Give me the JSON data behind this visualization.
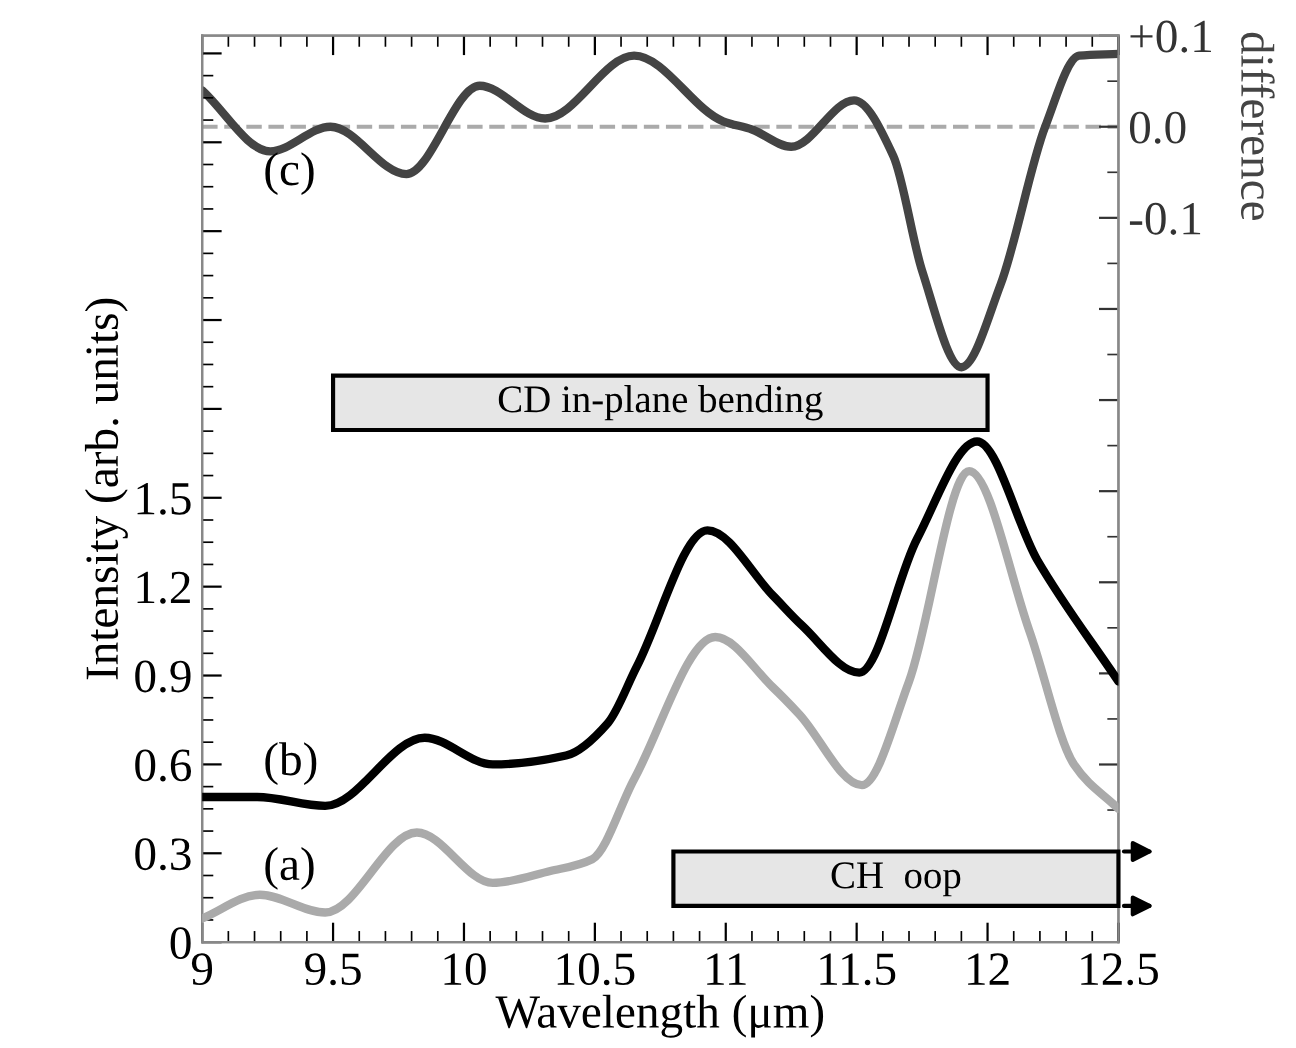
{
  "chart_data": {
    "type": "line",
    "xlabel": "Wavelength (μm)",
    "ylabel": "Intensity (arb. units)",
    "y2label": "difference",
    "xlim": [
      9,
      12.5
    ],
    "xticks": [
      9,
      9.5,
      10,
      10.5,
      11,
      11.5,
      12,
      12.5
    ],
    "ylim": [
      0,
      3.06
    ],
    "yticks": [
      0,
      0.3,
      0.6,
      0.9,
      1.2,
      1.5,
      {
        "value": 1.8,
        "label": null
      },
      {
        "value": 2.1,
        "label": null
      },
      {
        "value": 2.4,
        "label": null
      },
      {
        "value": 2.7,
        "label": null
      },
      {
        "value": 3.0,
        "label": null
      }
    ],
    "y2lim": [
      -0.895,
      0.1
    ],
    "y2ticks": [
      {
        "value": 0.1,
        "label": "+0.1"
      },
      {
        "value": 0.0,
        "label": "0.0"
      },
      {
        "value": -0.1,
        "label": "-0.1"
      },
      {
        "value": -0.2,
        "label": null
      },
      {
        "value": -0.3,
        "label": null
      },
      {
        "value": -0.4,
        "label": null
      },
      {
        "value": -0.5,
        "label": null
      },
      {
        "value": -0.6,
        "label": null
      },
      {
        "value": -0.7,
        "label": null
      },
      {
        "value": -0.8,
        "label": null
      }
    ],
    "grid": false,
    "legend": false,
    "series": [
      {
        "name": "(a)",
        "color": "#aaaaaa",
        "x": [
          9.0,
          9.22,
          9.47,
          9.82,
          10.11,
          10.33,
          10.49,
          10.65,
          10.96,
          11.18,
          11.28,
          11.52,
          11.7,
          11.93,
          12.16,
          12.33,
          12.5
        ],
        "values": [
          0.08,
          0.16,
          0.1,
          0.37,
          0.2,
          0.24,
          0.28,
          0.55,
          1.03,
          0.86,
          0.77,
          0.53,
          0.88,
          1.59,
          1.05,
          0.6,
          0.45
        ]
      },
      {
        "name": "(b)",
        "color": "#000000",
        "x": [
          9.0,
          9.21,
          9.47,
          9.85,
          10.11,
          10.39,
          10.55,
          10.66,
          10.93,
          11.18,
          11.29,
          11.51,
          11.73,
          11.96,
          12.19,
          12.5
        ],
        "values": [
          0.49,
          0.49,
          0.46,
          0.69,
          0.6,
          0.63,
          0.74,
          0.93,
          1.39,
          1.17,
          1.07,
          0.91,
          1.36,
          1.69,
          1.29,
          0.88
        ]
      },
      {
        "name": "(c)",
        "color": "#444444",
        "axis": "y2",
        "x": [
          9.0,
          9.26,
          9.49,
          9.78,
          10.06,
          10.31,
          10.65,
          10.99,
          11.1,
          11.25,
          11.49,
          11.64,
          11.75,
          11.9,
          12.05,
          12.22,
          12.35,
          12.5
        ],
        "values": [
          0.04,
          -0.027,
          0.0,
          -0.052,
          0.045,
          0.009,
          0.078,
          0.006,
          -0.003,
          -0.022,
          0.029,
          -0.032,
          -0.158,
          -0.264,
          -0.173,
          0.0,
          0.078,
          0.08
        ]
      }
    ],
    "ref_lines": [
      {
        "axis": "y2",
        "value": 0,
        "color": "#aaaaaa",
        "line_style": "dashed"
      }
    ],
    "bands": [
      {
        "axis": "x",
        "from": 9.5,
        "to": 12.0,
        "label": "CD in-plane bending",
        "color": "#e6e6e6"
      },
      {
        "axis": "x",
        "from": 10.8,
        "to": 12.5,
        "label": "CH  oop",
        "color": "#e6e6e6"
      }
    ]
  }
}
